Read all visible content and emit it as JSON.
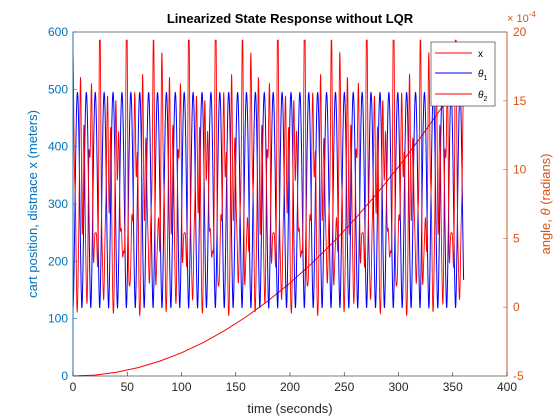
{
  "chart_data": {
    "type": "line",
    "title": "Linearized State Response without LQR",
    "xlabel": "time (seconds)",
    "ylabel_left": "cart position, distnace x (meters)",
    "ylabel_right": "angle, θ (radians)",
    "ylabel_right_symbol": "θ",
    "xlim": [
      0,
      400
    ],
    "ylim_left": [
      0,
      600
    ],
    "ylim_right": [
      -0.0005,
      0.002
    ],
    "right_axis_exponent": "× 10",
    "right_axis_exponent_power": "-4",
    "x_ticks": [
      "0",
      "50",
      "100",
      "150",
      "200",
      "250",
      "300",
      "350",
      "400"
    ],
    "y_left_ticks": [
      "0",
      "100",
      "200",
      "300",
      "400",
      "500",
      "600"
    ],
    "y_right_ticks": [
      "-5",
      "0",
      "5",
      "10",
      "15",
      "20"
    ],
    "grid": false,
    "legend_position": "top-right",
    "legend": [
      {
        "label": "x",
        "sub": "",
        "color": "#FF0000"
      },
      {
        "label": "θ",
        "sub": "1",
        "color": "#0000FF"
      },
      {
        "label": "θ",
        "sub": "2",
        "color": "#FF0000"
      }
    ],
    "series": [
      {
        "name": "x",
        "axis": "left",
        "color": "#FF0000",
        "x": [
          0,
          20,
          40,
          60,
          80,
          100,
          120,
          140,
          160,
          180,
          200,
          220,
          240,
          260,
          280,
          300,
          320,
          340,
          360
        ],
        "values": [
          0,
          1.6,
          6.5,
          14.6,
          26,
          40.5,
          58.4,
          79.5,
          103.8,
          131.4,
          162.2,
          196.3,
          233.6,
          274.1,
          317.9,
          364.9,
          415.2,
          468.7,
          525.4
        ]
      },
      {
        "name": "θ1",
        "axis": "right",
        "color": "#0000FF",
        "t_range": [
          0,
          360
        ],
        "period": 8.2,
        "min": -5.5e-06,
        "max": 0.00156,
        "start_value": 5.5e-06
      },
      {
        "name": "θ2",
        "axis": "right",
        "color": "#FF0000",
        "t_range": [
          0,
          360
        ],
        "beat_period": 8.2,
        "min": -6e-05,
        "max": 0.00194,
        "start_value": 0.00107
      }
    ]
  }
}
